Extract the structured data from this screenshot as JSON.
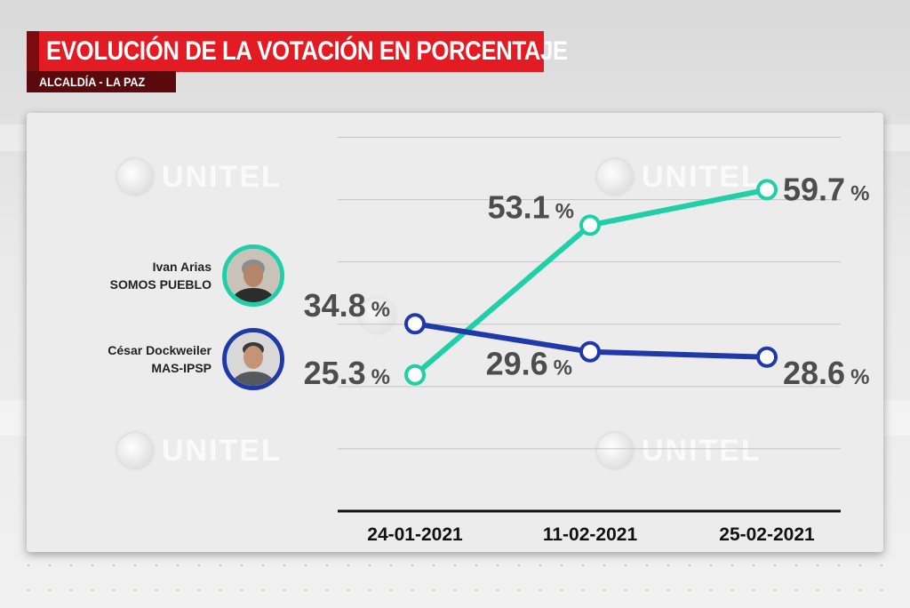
{
  "header": {
    "title": "EVOLUCIÓN DE LA VOTACIÓN EN PORCENTAJE",
    "subtitle": "ALCALDÍA - LA PAZ"
  },
  "watermark": "UNITEL",
  "candidates": [
    {
      "name": "Ivan Arias",
      "party": "SOMOS PUEBLO",
      "color": "#1fcfa8",
      "photo_icon": "person-photo-icon"
    },
    {
      "name": "César Dockweiler",
      "party": "MAS-IPSP",
      "color": "#1f3aa8",
      "photo_icon": "person-photo-icon"
    }
  ],
  "chart_data": {
    "type": "line",
    "title": "EVOLUCIÓN DE LA VOTACIÓN EN PORCENTAJE",
    "categories": [
      "24-01-2021",
      "11-02-2021",
      "25-02-2021"
    ],
    "ylim": [
      0,
      70
    ],
    "grid": true,
    "unit": "%",
    "series": [
      {
        "name": "Ivan Arias - SOMOS PUEBLO",
        "color": "#1fcfa8",
        "values": [
          25.3,
          53.1,
          59.7
        ],
        "labels": [
          "25.3",
          "53.1",
          "59.7"
        ]
      },
      {
        "name": "César Dockweiler - MAS-IPSP",
        "color": "#1f3aa8",
        "values": [
          34.8,
          29.6,
          28.6
        ],
        "labels": [
          "34.8",
          "29.6",
          "28.6"
        ]
      }
    ]
  }
}
